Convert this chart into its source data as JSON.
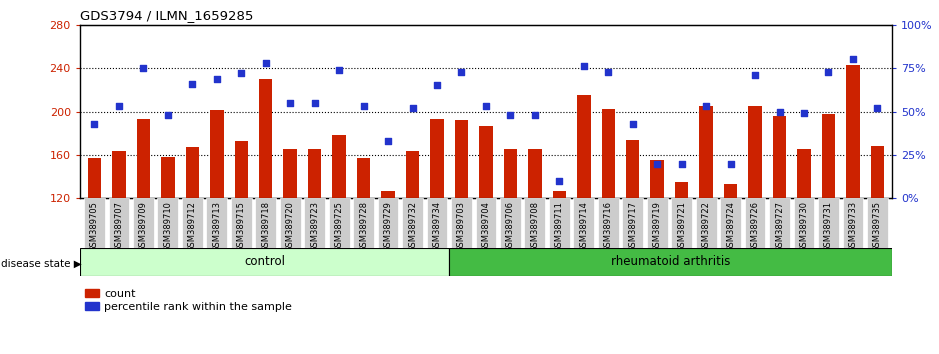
{
  "title": "GDS3794 / ILMN_1659285",
  "samples": [
    "GSM389705",
    "GSM389707",
    "GSM389709",
    "GSM389710",
    "GSM389712",
    "GSM389713",
    "GSM389715",
    "GSM389718",
    "GSM389720",
    "GSM389723",
    "GSM389725",
    "GSM389728",
    "GSM389729",
    "GSM389732",
    "GSM389734",
    "GSM389703",
    "GSM389704",
    "GSM389706",
    "GSM389708",
    "GSM389711",
    "GSM389714",
    "GSM389716",
    "GSM389717",
    "GSM389719",
    "GSM389721",
    "GSM389722",
    "GSM389724",
    "GSM389726",
    "GSM389727",
    "GSM389730",
    "GSM389731",
    "GSM389733",
    "GSM389735"
  ],
  "bar_values": [
    157,
    164,
    193,
    158,
    167,
    201,
    173,
    230,
    165,
    165,
    178,
    157,
    127,
    164,
    193,
    192,
    187,
    165,
    165,
    127,
    215,
    202,
    174,
    155,
    135,
    205,
    133,
    205,
    196,
    165,
    198,
    243,
    168
  ],
  "dot_values": [
    43,
    53,
    75,
    48,
    66,
    69,
    72,
    78,
    55,
    55,
    74,
    53,
    33,
    52,
    65,
    73,
    53,
    48,
    48,
    10,
    76,
    73,
    43,
    20,
    20,
    53,
    20,
    71,
    50,
    49,
    73,
    80,
    52
  ],
  "n_control": 15,
  "n_ra": 18,
  "ylim_left": [
    120,
    280
  ],
  "ylim_right": [
    0,
    100
  ],
  "yticks_left": [
    120,
    160,
    200,
    240,
    280
  ],
  "yticks_right": [
    0,
    25,
    50,
    75,
    100
  ],
  "bar_color": "#cc2200",
  "dot_color": "#2233cc",
  "control_label": "control",
  "ra_label": "rheumatoid arthritis",
  "disease_state_label": "disease state",
  "legend_bar": "count",
  "legend_dot": "percentile rank within the sample",
  "control_bg": "#ccffcc",
  "ra_bg": "#44bb44",
  "tick_bg": "#cccccc",
  "bar_width": 0.55
}
